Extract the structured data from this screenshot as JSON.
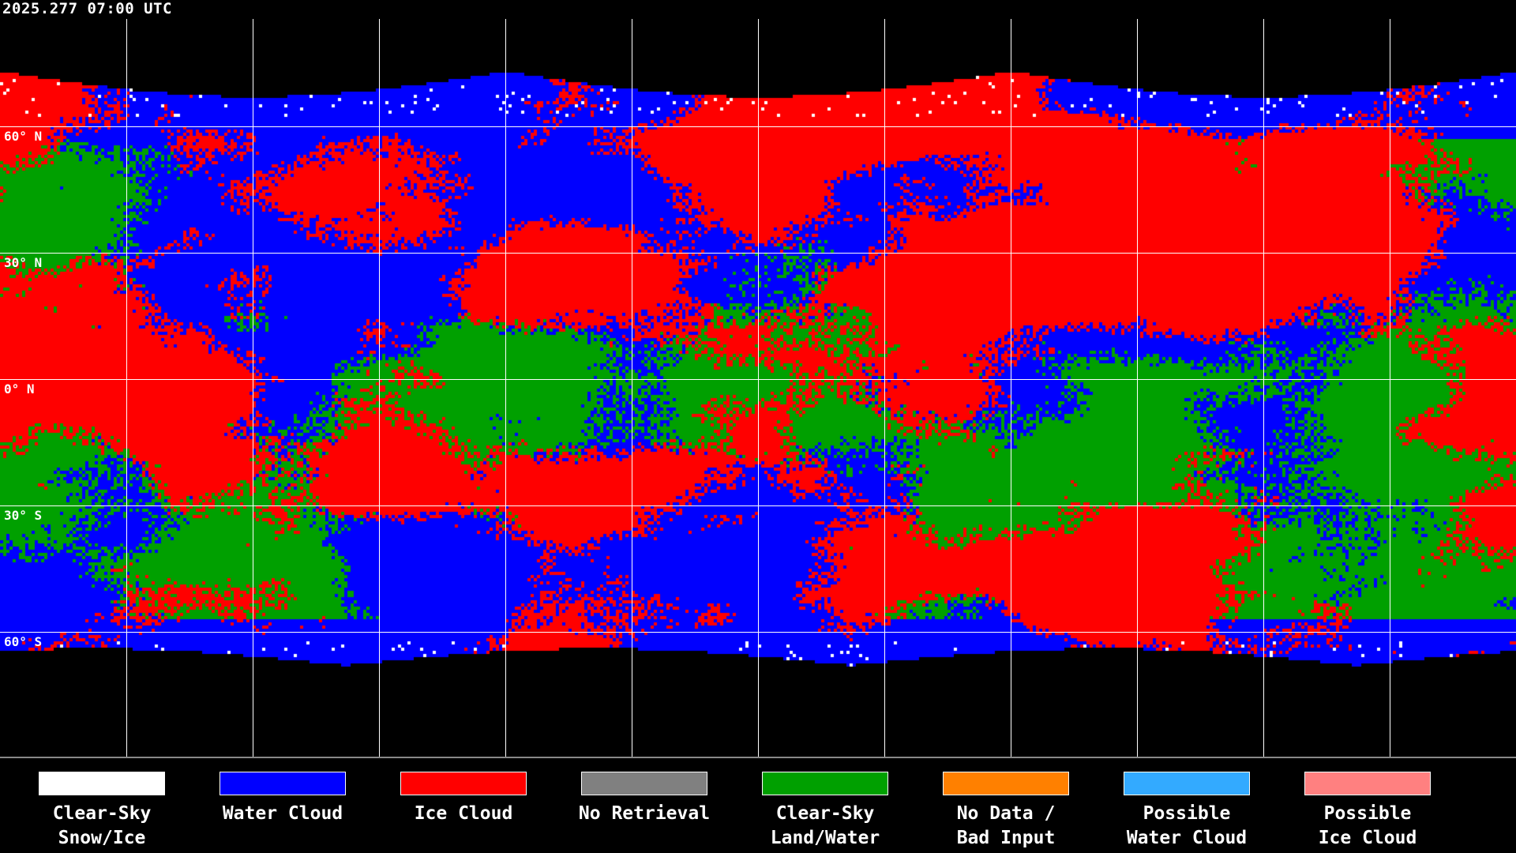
{
  "title": "2025.277 07:00 UTC",
  "latitude_labels": [
    "60° N",
    "30° N",
    "0° N",
    "30° S",
    "60° S"
  ],
  "legend": [
    {
      "line1": "Clear-Sky",
      "line2": "Snow/Ice",
      "color": "#ffffff"
    },
    {
      "line1": "Water Cloud",
      "line2": "",
      "color": "#0000ff"
    },
    {
      "line1": "Ice Cloud",
      "line2": "",
      "color": "#ff0000"
    },
    {
      "line1": "No Retrieval",
      "line2": "",
      "color": "#808080"
    },
    {
      "line1": "Clear-Sky",
      "line2": "Land/Water",
      "color": "#00a000"
    },
    {
      "line1": "No Data /",
      "line2": "Bad Input",
      "color": "#ff8000"
    },
    {
      "line1": "Possible",
      "line2": "Water Cloud",
      "color": "#33aaff"
    },
    {
      "line1": "Possible",
      "line2": "Ice Cloud",
      "color": "#ff8080"
    }
  ]
}
